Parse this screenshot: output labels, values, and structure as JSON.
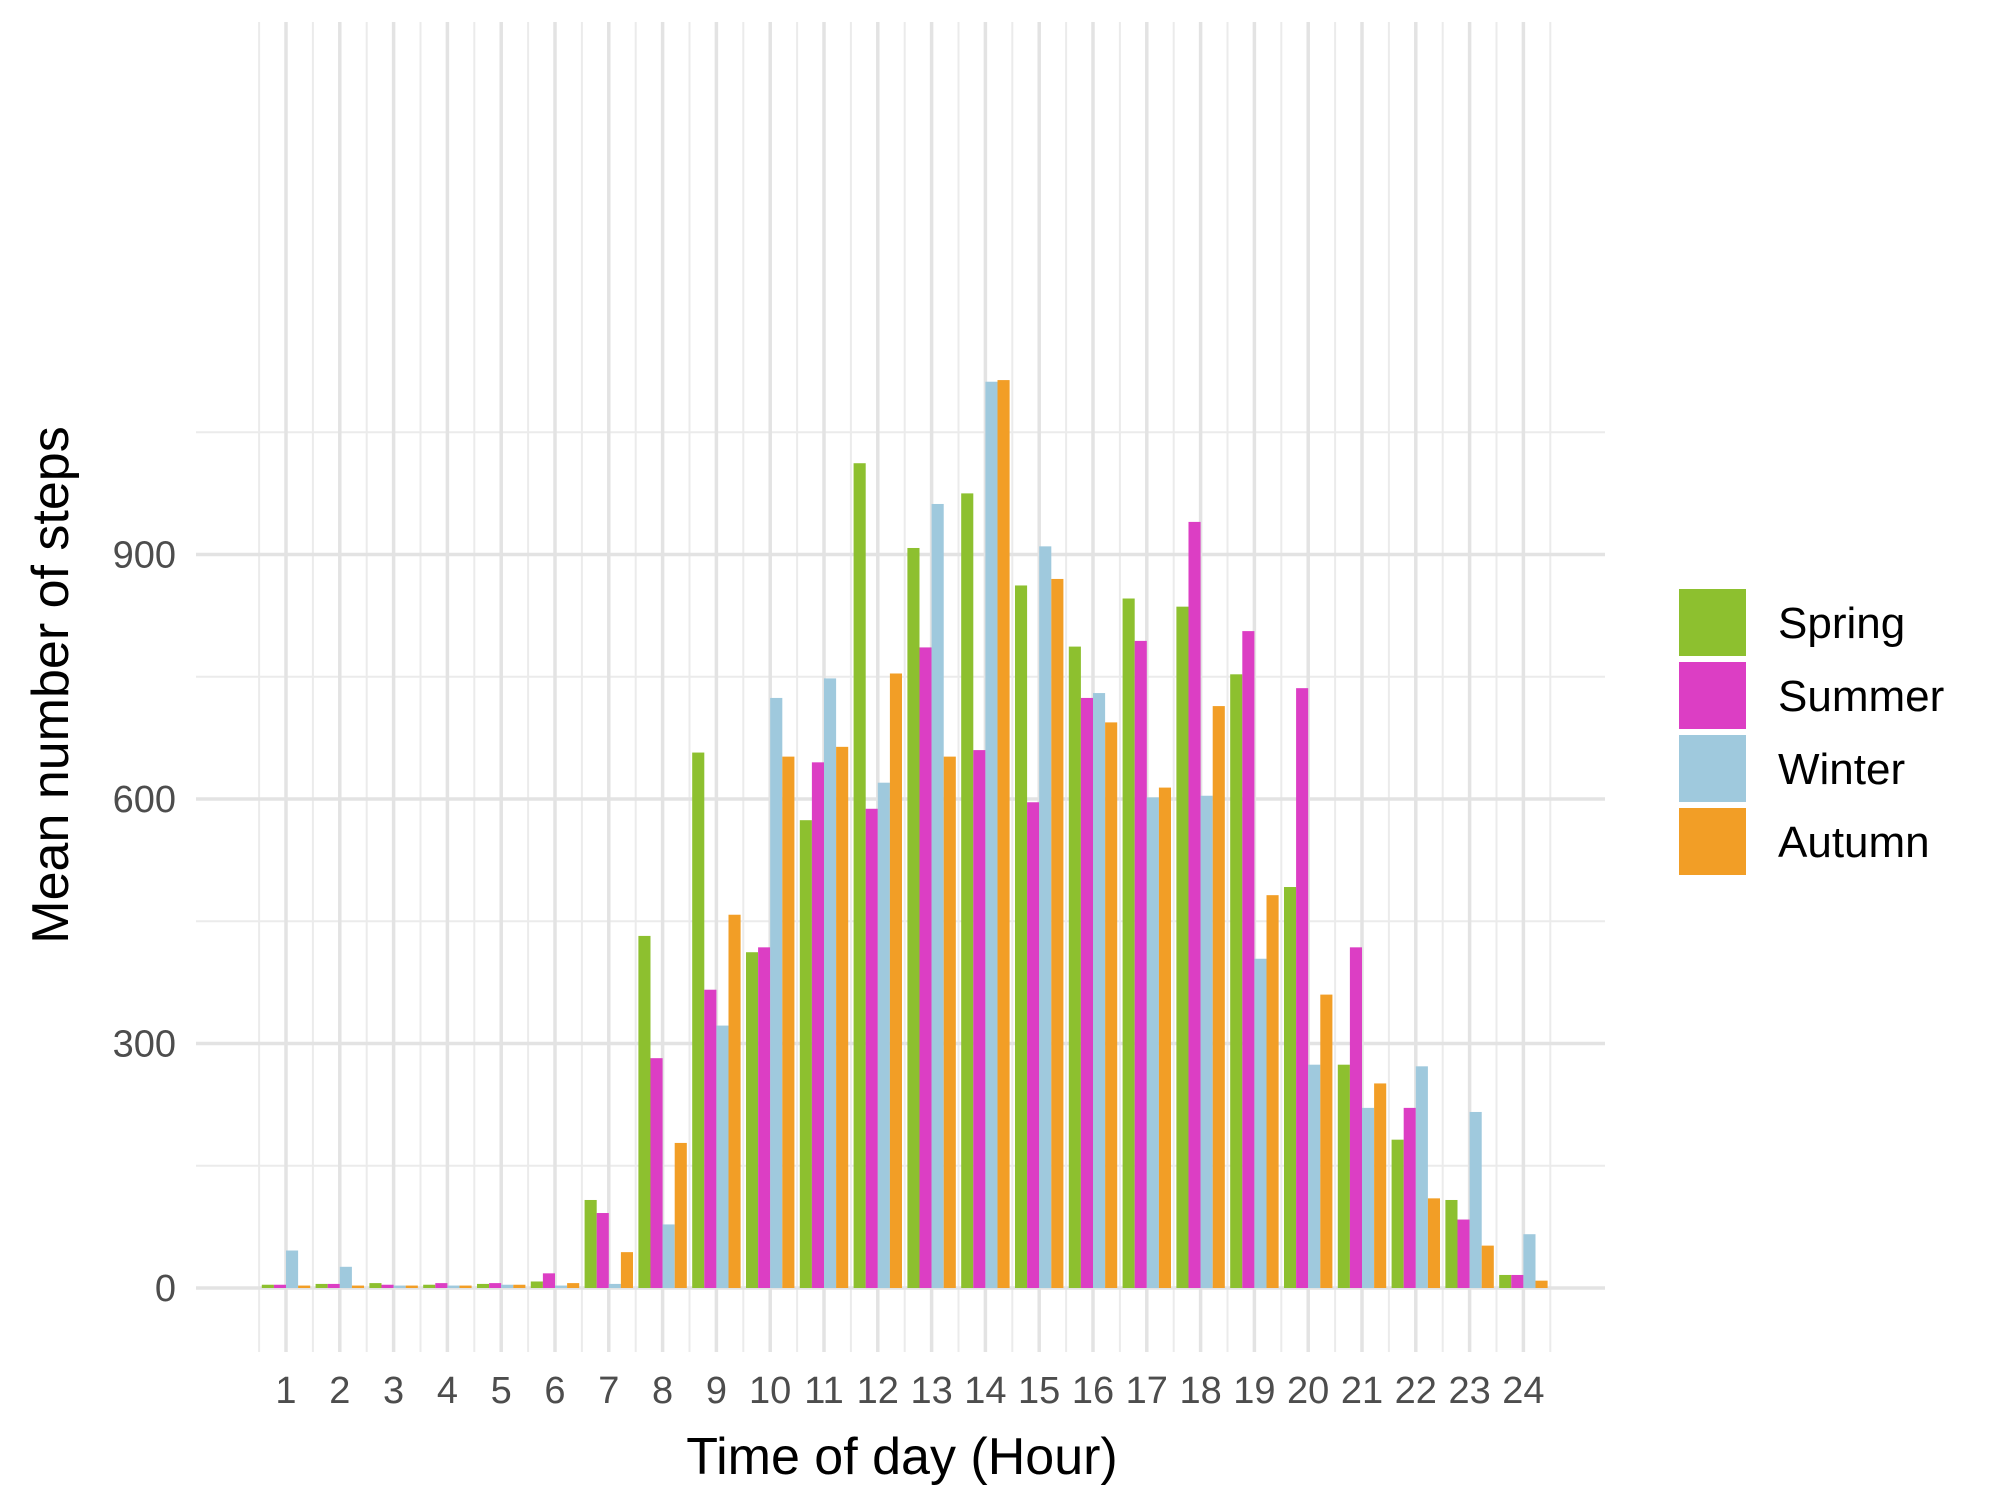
{
  "chart_data": {
    "type": "bar",
    "title": "",
    "xlabel": "Time of day (Hour)",
    "ylabel": "Mean number of steps",
    "ylim": [
      -140,
      1160
    ],
    "yticks": [
      0,
      300,
      600,
      900
    ],
    "grid": true,
    "legend_position": "right",
    "categories": [
      "1",
      "2",
      "3",
      "4",
      "5",
      "6",
      "7",
      "8",
      "9",
      "10",
      "11",
      "12",
      "13",
      "14",
      "15",
      "16",
      "17",
      "18",
      "19",
      "20",
      "21",
      "22",
      "23",
      "24"
    ],
    "series": [
      {
        "name": "Spring",
        "color": "#8dc02f",
        "values": [
          4,
          5,
          6,
          4,
          5,
          8,
          108,
          432,
          657,
          412,
          574,
          1012,
          908,
          975,
          862,
          787,
          846,
          836,
          753,
          492,
          274,
          182,
          108,
          16
        ]
      },
      {
        "name": "Summer",
        "color": "#dc3ec4",
        "values": [
          4,
          5,
          4,
          6,
          6,
          18,
          92,
          282,
          366,
          418,
          645,
          588,
          786,
          660,
          596,
          724,
          794,
          940,
          806,
          736,
          418,
          221,
          84,
          16
        ]
      },
      {
        "name": "Winter",
        "color": "#9fc9dd",
        "values": [
          46,
          26,
          3,
          3,
          4,
          3,
          5,
          78,
          322,
          724,
          748,
          620,
          962,
          1112,
          910,
          730,
          602,
          604,
          404,
          274,
          221,
          272,
          216,
          66
        ]
      },
      {
        "name": "Autumn",
        "color": "#f29e26",
        "values": [
          3,
          3,
          3,
          3,
          4,
          6,
          44,
          178,
          458,
          652,
          664,
          754,
          652,
          1114,
          870,
          694,
          614,
          714,
          482,
          360,
          251,
          110,
          52,
          9
        ]
      }
    ]
  }
}
